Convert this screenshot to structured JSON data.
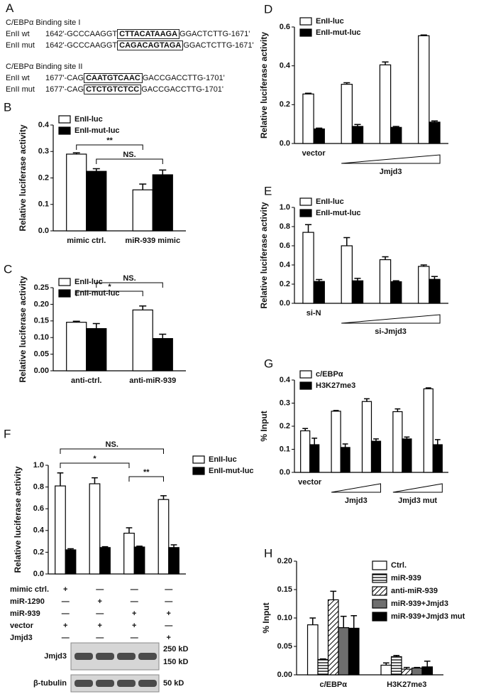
{
  "panel_a": {
    "letter": "A",
    "sites": [
      {
        "title": "C/EBPα Binding site I",
        "lines": [
          {
            "name": "EnII wt",
            "pre": "1642'-GCCCAAGGT",
            "box": "CTTACATAAGA",
            "post": "GGACTCTTG-1671'"
          },
          {
            "name": "EnII mut",
            "pre": "1642'-GCCCAAGGT",
            "box": "CAGACAGTAGA",
            "post": "GGACTCTTG-1671'"
          }
        ]
      },
      {
        "title": "C/EBPα Binding site II",
        "lines": [
          {
            "name": "EnII wt",
            "pre": "1677'-CAG",
            "box": "CAATGTCAAC",
            "post": "GACCGACCTTG-1701'"
          },
          {
            "name": "EnII mut",
            "pre": "1677'-CAG",
            "box": "CTCTGTCTCC",
            "post": "GACCGACCTTG-1701'"
          }
        ]
      }
    ]
  },
  "chart_data": [
    {
      "type": "bar",
      "panel": "B",
      "ylabel": "Relative luciferase activity",
      "categories": [
        "mimic ctrl.",
        "miR-939 mimic"
      ],
      "series": [
        {
          "name": "EnII-luc",
          "color": "#ffffff",
          "values": [
            0.29,
            0.155
          ],
          "errors": [
            0.005,
            0.022
          ]
        },
        {
          "name": "EnII-mut-luc",
          "color": "#000000",
          "values": [
            0.225,
            0.212
          ],
          "errors": [
            0.01,
            0.018
          ]
        }
      ],
      "ylim": [
        0,
        0.4
      ],
      "yticks": [
        {
          "value": 0,
          "label": "0.0"
        },
        0.1,
        0.2,
        0.3,
        0.4
      ],
      "legend": "upper left",
      "annotations": [
        "**",
        "NS."
      ]
    },
    {
      "type": "bar",
      "panel": "C",
      "ylabel": "Relative luciferase activity",
      "categories": [
        "anti-ctrl.",
        "anti-miR-939"
      ],
      "series": [
        {
          "name": "EnII-luc",
          "color": "#ffffff",
          "values": [
            0.146,
            0.183
          ],
          "errors": [
            0.003,
            0.012
          ]
        },
        {
          "name": "EnII-mut-luc",
          "color": "#000000",
          "values": [
            0.127,
            0.097
          ],
          "errors": [
            0.015,
            0.013
          ]
        }
      ],
      "ylim": [
        0,
        0.25
      ],
      "yticks": [
        {
          "value": 0,
          "label": "0.00"
        },
        0.05,
        {
          "value": 0.1,
          "label": "0.10"
        },
        0.15,
        {
          "value": 0.2,
          "label": "0.20"
        },
        0.25
      ],
      "legend": "upper left",
      "annotations": [
        "*",
        "NS."
      ]
    },
    {
      "type": "bar",
      "panel": "D",
      "ylabel": "Relative luciferase activity",
      "categories": [
        "vector",
        null,
        null,
        null
      ],
      "group_labels": [
        "Jmjd3"
      ],
      "series": [
        {
          "name": "EnII-luc",
          "color": "#ffffff",
          "values": [
            0.255,
            0.305,
            0.405,
            0.555
          ],
          "errors": [
            0.004,
            0.008,
            0.015,
            0.004
          ]
        },
        {
          "name": "EnII-mut-luc",
          "color": "#000000",
          "values": [
            0.075,
            0.088,
            0.083,
            0.11
          ],
          "errors": [
            0.004,
            0.01,
            0.005,
            0.006
          ]
        }
      ],
      "ylim": [
        0,
        0.6
      ],
      "yticks": [
        {
          "value": 0,
          "label": "0.0"
        },
        0.2,
        0.4,
        0.6
      ],
      "legend": "upper left"
    },
    {
      "type": "bar",
      "panel": "E",
      "ylabel": "Relative luciferase activity",
      "categories": [
        "si-N",
        null,
        null,
        null
      ],
      "group_labels": [
        "si-Jmjd3"
      ],
      "series": [
        {
          "name": "EnII-luc",
          "color": "#ffffff",
          "values": [
            0.74,
            0.6,
            0.455,
            0.385
          ],
          "errors": [
            0.08,
            0.085,
            0.03,
            0.015
          ]
        },
        {
          "name": "EnII-mut-luc",
          "color": "#000000",
          "values": [
            0.228,
            0.235,
            0.225,
            0.25
          ],
          "errors": [
            0.02,
            0.025,
            0.01,
            0.03
          ]
        }
      ],
      "ylim": [
        0,
        1
      ],
      "yticks": [
        {
          "value": 0,
          "label": "0.0"
        },
        0.2,
        0.4,
        0.6,
        0.8,
        {
          "value": 1,
          "label": "1.0"
        }
      ],
      "legend": "upper left"
    },
    {
      "type": "bar",
      "panel": "F",
      "ylabel": "Relative luciferase activity",
      "categories": [
        null,
        null,
        null,
        null
      ],
      "series": [
        {
          "name": "EnII-luc",
          "color": "#ffffff",
          "values": [
            0.81,
            0.83,
            0.375,
            0.685
          ],
          "errors": [
            0.12,
            0.055,
            0.05,
            0.035
          ]
        },
        {
          "name": "EnII-mut-luc",
          "color": "#000000",
          "values": [
            0.222,
            0.243,
            0.248,
            0.243
          ],
          "errors": [
            0.01,
            0.008,
            0.008,
            0.025
          ]
        }
      ],
      "ylim": [
        0,
        1
      ],
      "yticks": [
        {
          "value": 0,
          "label": "0.0"
        },
        0.2,
        0.4,
        0.6,
        0.8,
        {
          "value": 1,
          "label": "1.0"
        }
      ],
      "legend": "upper right",
      "annotations": [
        "NS.",
        "*",
        "**"
      ],
      "treatments": [
        {
          "name": "mimic ctrl.",
          "signs": [
            "+",
            "—",
            "—",
            "—"
          ]
        },
        {
          "name": "miR-1290",
          "signs": [
            "—",
            "+",
            "—",
            "—"
          ]
        },
        {
          "name": "miR-939",
          "signs": [
            "—",
            "—",
            "+",
            "+"
          ]
        },
        {
          "name": "vector",
          "signs": [
            "+",
            "+",
            "+",
            "—"
          ]
        },
        {
          "name": "Jmjd3",
          "signs": [
            "—",
            "—",
            "—",
            "+"
          ]
        }
      ],
      "blots": [
        {
          "name": "Jmjd3",
          "markers": [
            "250 kD",
            "150 kD"
          ]
        },
        {
          "name": "β-tubulin",
          "markers": [
            "50 kD"
          ]
        }
      ]
    },
    {
      "type": "bar",
      "panel": "G",
      "ylabel": "% Input",
      "categories": [
        "vector",
        null,
        null,
        null,
        null
      ],
      "group_labels": [
        "Jmjd3",
        "Jmjd3 mut"
      ],
      "series": [
        {
          "name": "c/EBPα",
          "color": "#ffffff",
          "values": [
            0.18,
            0.265,
            0.307,
            0.263,
            0.362
          ],
          "errors": [
            0.01,
            0.003,
            0.012,
            0.012,
            0.004
          ]
        },
        {
          "name": "H3K27me3",
          "color": "#000000",
          "values": [
            0.12,
            0.108,
            0.135,
            0.145,
            0.12
          ],
          "errors": [
            0.028,
            0.015,
            0.01,
            0.008,
            0.022
          ]
        }
      ],
      "ylim": [
        0,
        0.4
      ],
      "yticks": [
        {
          "value": 0,
          "label": "0.0"
        },
        0.1,
        0.2,
        0.3,
        0.4
      ],
      "legend": "upper left"
    },
    {
      "type": "bar",
      "panel": "H",
      "ylabel": "% Input",
      "categories": [
        "c/EBPα",
        "H3K27me3"
      ],
      "series": [
        {
          "name": "Ctrl.",
          "color": "#ffffff",
          "values": [
            0.088,
            0.017
          ],
          "errors": [
            0.012,
            0.004
          ]
        },
        {
          "name": "miR-939",
          "color": "#ffffff",
          "pattern": "horizontal",
          "values": [
            0.027,
            0.032
          ],
          "errors": [
            0.001,
            0.002
          ]
        },
        {
          "name": "anti-miR-939",
          "color": "#ffffff",
          "pattern": "diagonal",
          "values": [
            0.132,
            0.01
          ],
          "errors": [
            0.015,
            0.003
          ]
        },
        {
          "name": "miR-939+Jmjd3",
          "color": "#6e6e6e",
          "values": [
            0.083,
            0.012
          ],
          "errors": [
            0.02,
            0.001
          ]
        },
        {
          "name": "miR-939+Jmjd3 mut",
          "color": "#000000",
          "values": [
            0.082,
            0.014
          ],
          "errors": [
            0.022,
            0.01
          ]
        }
      ],
      "ylim": [
        0,
        0.2
      ],
      "yticks": [
        {
          "value": 0,
          "label": "0.00"
        },
        0.05,
        {
          "value": 0.1,
          "label": "0.10"
        },
        0.15,
        {
          "value": 0.2,
          "label": "0.20"
        }
      ],
      "legend": "upper right"
    }
  ]
}
